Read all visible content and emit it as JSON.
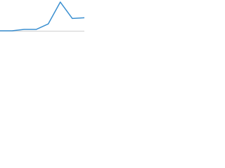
{
  "chart_data": {
    "type": "line",
    "categories": [
      null,
      null,
      null,
      null,
      null,
      null,
      null,
      null
    ],
    "series": [
      {
        "color": "#3a8fd0",
        "values": [
          0,
          0,
          2,
          2,
          10,
          42,
          18,
          19
        ]
      }
    ],
    "ylim": [
      0,
      44
    ]
  }
}
